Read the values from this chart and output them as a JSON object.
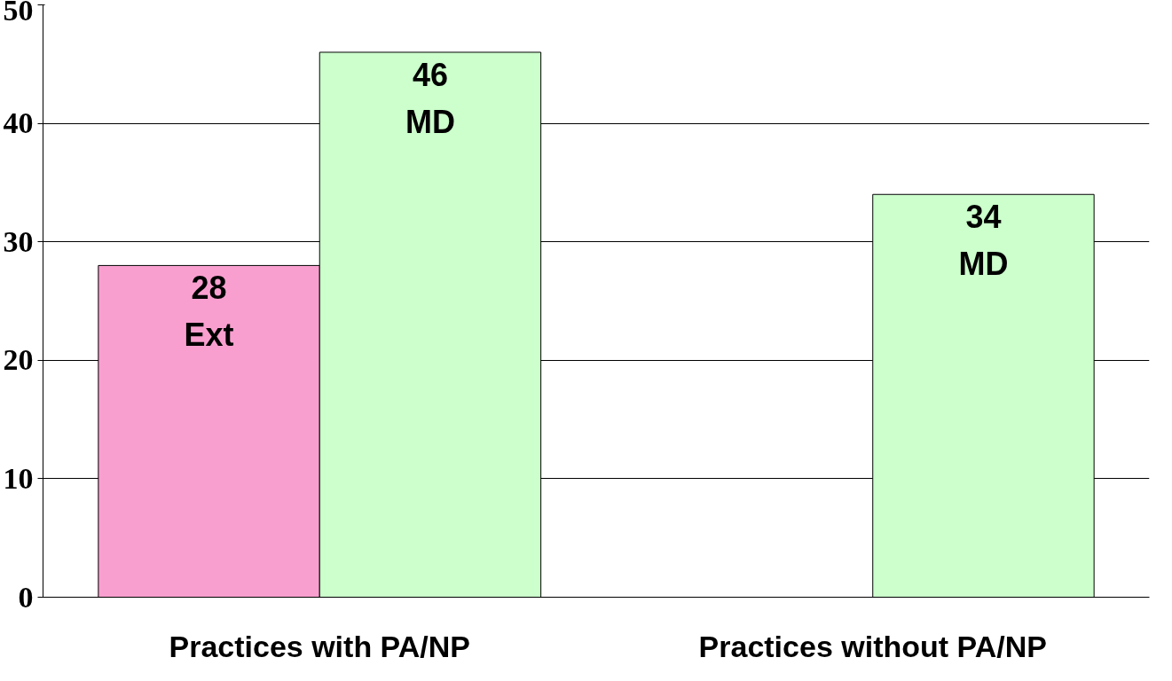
{
  "chart_data": {
    "type": "bar",
    "categories": [
      "Practices with PA/NP",
      "Practices without PA/NP"
    ],
    "series": [
      {
        "name": "Ext",
        "color": "#f99fcf",
        "values": [
          28,
          null
        ]
      },
      {
        "name": "MD",
        "color": "#ccffcc",
        "values": [
          46,
          34
        ]
      }
    ],
    "ylim": [
      0,
      50
    ],
    "yticks": [
      0,
      10,
      20,
      30,
      40,
      50
    ],
    "grid": "y",
    "data_labels": true
  }
}
